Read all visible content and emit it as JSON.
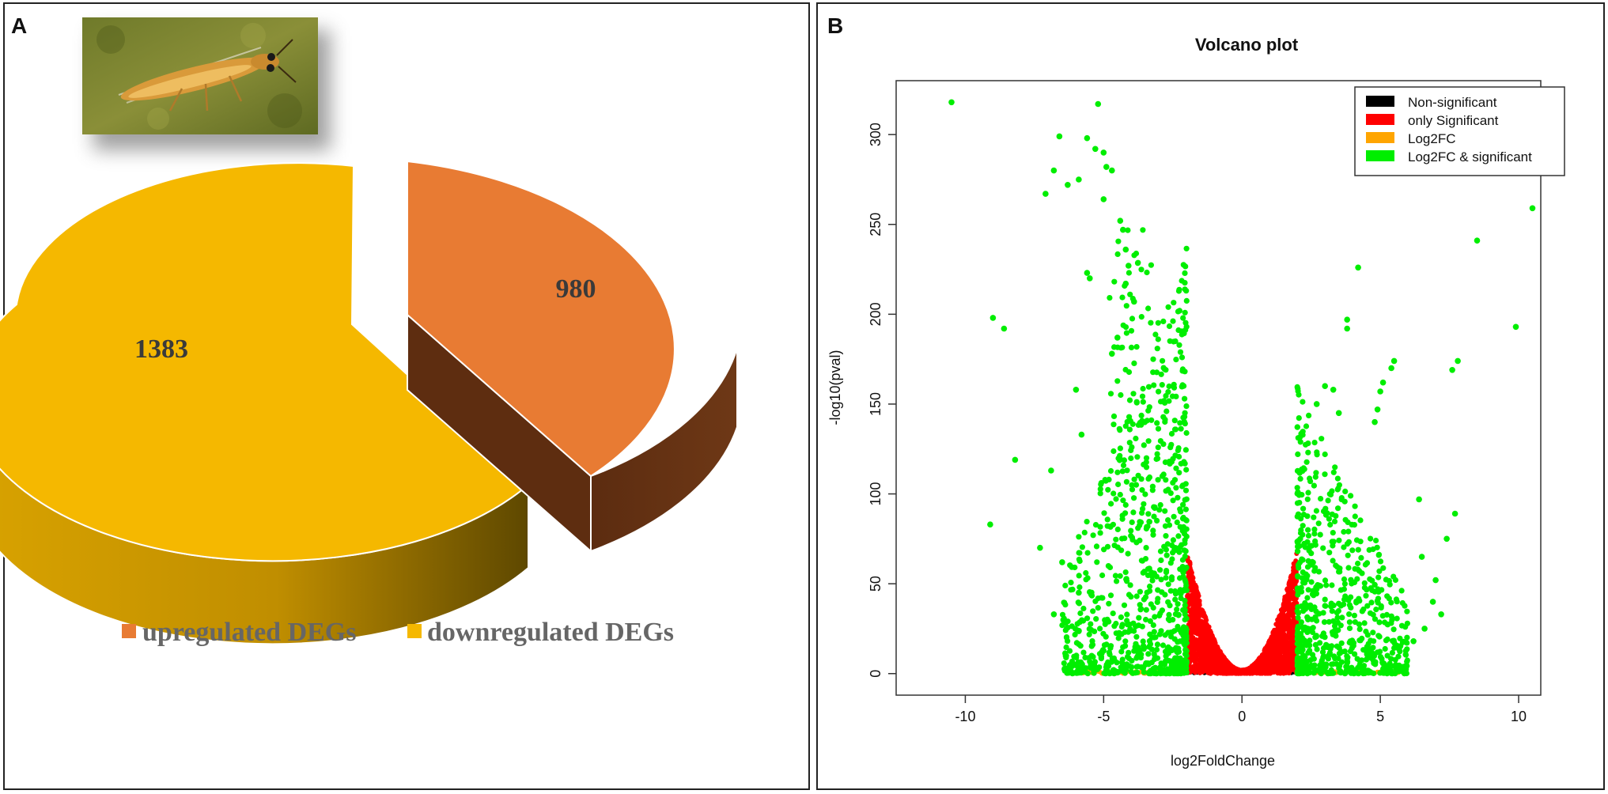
{
  "panels": {
    "a": {
      "label": "A"
    },
    "b": {
      "label": "B"
    }
  },
  "chart_data": [
    {
      "type": "pie",
      "style": "3d-exploded",
      "labels": [
        "upregulated DEGs",
        "downregulated DEGs"
      ],
      "values": [
        980,
        1383
      ],
      "data_labels": [
        "980",
        "1383"
      ],
      "colors": [
        "#E87B33",
        "#F5B800"
      ],
      "side_colors": [
        "#6B3512",
        "#B08200"
      ],
      "legend": [
        "upregulated DEGs",
        "downregulated DEGs"
      ],
      "legend_position": "bottom",
      "inset_image": "thrips-insect-photo"
    },
    {
      "type": "scatter",
      "title": "Volcano plot",
      "xlabel": "log2FoldChange",
      "ylabel": "-log10(pval)",
      "xlim": [
        -12.5,
        10.8
      ],
      "ylim": [
        -12,
        330
      ],
      "xticks": [
        -10,
        -5,
        0,
        5,
        10
      ],
      "yticks": [
        0,
        50,
        100,
        150,
        200,
        250,
        300
      ],
      "legend_position": "top-right",
      "series": [
        {
          "name": "Non-significant",
          "color": "#000000"
        },
        {
          "name": "only Significant",
          "color": "#FF0000"
        },
        {
          "name": "Log2FC",
          "color": "#FFA500"
        },
        {
          "name": "Log2FC & significant",
          "color": "#00EE00"
        }
      ],
      "outlier_points": [
        [
          -10.5,
          318
        ],
        [
          -5.2,
          317
        ],
        [
          -6.6,
          299
        ],
        [
          -5.6,
          298
        ],
        [
          -5.3,
          292
        ],
        [
          -5.0,
          290
        ],
        [
          -4.9,
          282
        ],
        [
          -4.7,
          280
        ],
        [
          -6.8,
          280
        ],
        [
          -5.9,
          275
        ],
        [
          -6.3,
          272
        ],
        [
          -7.1,
          267
        ],
        [
          -5.0,
          264
        ],
        [
          -4.4,
          252
        ],
        [
          -4.3,
          247
        ],
        [
          -4.2,
          236
        ],
        [
          -4.1,
          227
        ],
        [
          -5.6,
          223
        ],
        [
          -5.5,
          220
        ],
        [
          -4.2,
          217
        ],
        [
          -3.9,
          207
        ],
        [
          -9.0,
          198
        ],
        [
          -8.6,
          192
        ],
        [
          -4.5,
          187
        ],
        [
          -4.7,
          178
        ],
        [
          -6.0,
          158
        ],
        [
          -5.8,
          133
        ],
        [
          -8.2,
          119
        ],
        [
          -6.9,
          113
        ],
        [
          -9.1,
          83
        ],
        [
          -7.3,
          70
        ],
        [
          -6.5,
          62
        ],
        [
          -6.8,
          33
        ],
        [
          -5.9,
          45
        ],
        [
          4.2,
          226
        ],
        [
          3.8,
          197
        ],
        [
          3.8,
          192
        ],
        [
          5.5,
          174
        ],
        [
          5.4,
          170
        ],
        [
          5.1,
          162
        ],
        [
          5.0,
          157
        ],
        [
          4.9,
          147
        ],
        [
          4.8,
          140
        ],
        [
          6.4,
          97
        ],
        [
          7.7,
          89
        ],
        [
          7.4,
          75
        ],
        [
          6.5,
          65
        ],
        [
          10.5,
          259
        ],
        [
          8.5,
          241
        ],
        [
          9.9,
          193
        ],
        [
          7.8,
          174
        ],
        [
          7.6,
          169
        ],
        [
          7.0,
          52
        ],
        [
          6.9,
          40
        ],
        [
          7.2,
          33
        ],
        [
          6.6,
          25
        ],
        [
          6.2,
          18
        ],
        [
          3.0,
          160
        ],
        [
          3.3,
          158
        ],
        [
          2.7,
          150
        ],
        [
          3.5,
          145
        ]
      ]
    }
  ]
}
